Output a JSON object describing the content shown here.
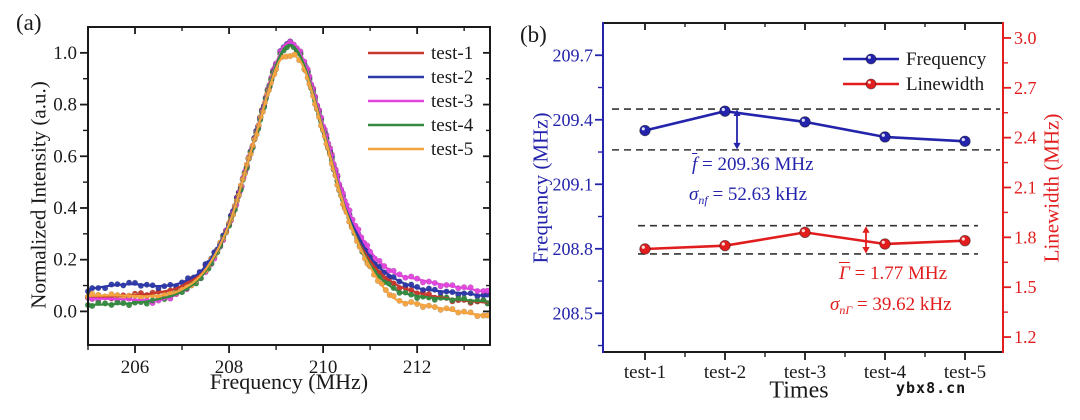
{
  "panel_labels": {
    "a": "(a)",
    "b": "(b)"
  },
  "watermark": "ybx8.cn",
  "colors": {
    "test1": "#c8372d",
    "test2": "#2c37a8",
    "test3": "#e044dd",
    "test4": "#338a3e",
    "test5": "#f4a33f",
    "freq_blue": "#2323ab",
    "linewidth_red": "#e11d1d",
    "dash_gray": "#333333",
    "axis_black": "#1a1a1a"
  },
  "chart_data": [
    {
      "type": "line",
      "panel": "a",
      "xlabel": "Frequency (MHz)",
      "ylabel": "Normalized Intensity (a.u.)",
      "xlim": [
        205,
        213.55
      ],
      "ylim": [
        -0.13,
        1.1
      ],
      "x_major_ticks": [
        206,
        208,
        210,
        212
      ],
      "x_minor_ticks": [
        205,
        207,
        209,
        211,
        213
      ],
      "y_major_ticks": [
        0.0,
        0.2,
        0.4,
        0.6,
        0.8,
        1.0
      ],
      "y_minor_ticks": [
        0.1,
        0.3,
        0.5,
        0.7,
        0.9
      ],
      "legend_position": "top-right",
      "x": [
        205,
        205.5,
        206,
        206.5,
        207,
        207.5,
        208,
        208.5,
        209,
        209.3,
        209.6,
        210,
        210.5,
        211,
        211.5,
        212,
        212.5,
        213,
        213.5
      ],
      "series": [
        {
          "name": "test-1",
          "color": "#c8372d",
          "y": [
            0.055,
            0.058,
            0.063,
            0.073,
            0.099,
            0.17,
            0.342,
            0.642,
            0.956,
            1.035,
            0.958,
            0.714,
            0.396,
            0.197,
            0.11,
            0.073,
            0.054,
            0.042,
            0.034
          ]
        },
        {
          "name": "test-2",
          "color": "#2c37a8",
          "y": [
            0.085,
            0.1,
            0.105,
            0.098,
            0.112,
            0.175,
            0.344,
            0.642,
            0.958,
            1.038,
            0.96,
            0.716,
            0.401,
            0.211,
            0.13,
            0.091,
            0.078,
            0.07,
            0.058
          ]
        },
        {
          "name": "test-3",
          "color": "#e044dd",
          "y": [
            0.05,
            0.048,
            0.045,
            0.043,
            0.077,
            0.155,
            0.334,
            0.64,
            0.96,
            1.04,
            0.965,
            0.722,
            0.412,
            0.235,
            0.15,
            0.125,
            0.105,
            0.09,
            0.075
          ]
        },
        {
          "name": "test-4",
          "color": "#338a3e",
          "y": [
            0.025,
            0.028,
            0.033,
            0.047,
            0.077,
            0.155,
            0.334,
            0.638,
            0.952,
            1.03,
            0.952,
            0.706,
            0.384,
            0.181,
            0.088,
            0.06,
            0.05,
            0.044,
            0.038
          ]
        },
        {
          "name": "test-5",
          "color": "#f4a33f",
          "y": [
            0.06,
            0.062,
            0.06,
            0.06,
            0.085,
            0.162,
            0.338,
            0.64,
            0.94,
            0.992,
            0.938,
            0.698,
            0.378,
            0.172,
            0.052,
            0.03,
            0.012,
            -0.005,
            -0.018
          ]
        }
      ]
    },
    {
      "type": "line",
      "panel": "b",
      "xlabel": "Times",
      "categories": [
        "test-1",
        "test-2",
        "test-3",
        "test-4",
        "test-5"
      ],
      "left_axis": {
        "label": "Frequency (MHz)",
        "color": "#2323ab",
        "ticks": [
          209.7,
          209.4,
          209.1,
          208.8,
          208.5
        ],
        "minor_ticks": [
          209.55,
          209.25,
          208.95,
          208.65,
          208.35
        ],
        "range": [
          208.32,
          209.85
        ],
        "decimals": 1
      },
      "right_axis": {
        "label": "Linewidth (MHz)",
        "color": "#e11d1d",
        "ticks": [
          3.0,
          2.7,
          2.4,
          2.1,
          1.8,
          1.5,
          1.2
        ],
        "minor_ticks": [
          2.85,
          2.55,
          2.25,
          1.95,
          1.65,
          1.35
        ],
        "range": [
          1.11,
          3.09
        ],
        "decimals": 1
      },
      "legend_position": "top-right",
      "series": [
        {
          "name": "Frequency",
          "axis": "left",
          "color": "#2323ab",
          "values": [
            209.35,
            209.44,
            209.39,
            209.32,
            209.3
          ]
        },
        {
          "name": "Linewidth",
          "axis": "right",
          "color": "#e11d1d",
          "values": [
            1.73,
            1.75,
            1.83,
            1.76,
            1.78
          ]
        }
      ],
      "dashed_lines": [
        {
          "axis": "left",
          "values": [
            209.45,
            209.26
          ],
          "x_extent": [
            612,
            1000
          ]
        },
        {
          "axis": "right",
          "values": [
            1.87,
            1.7
          ],
          "x_extent": [
            638,
            978
          ]
        }
      ],
      "annotations": [
        {
          "sym": "f",
          "overline": true,
          "sub": "",
          "rest": " = 209.36 MHz",
          "color": "#2323ab"
        },
        {
          "sym": "σ",
          "overline": false,
          "sub": "nf",
          "rest": " = 52.63 kHz",
          "color": "#2323ab"
        },
        {
          "sym": "Γ",
          "overline": true,
          "sub": "",
          "rest": " = 1.77 MHz",
          "color": "#e11d1d"
        },
        {
          "sym": "σ",
          "overline": false,
          "sub": "nΓ",
          "rest": " = 39.62 kHz",
          "color": "#e11d1d"
        }
      ]
    }
  ]
}
